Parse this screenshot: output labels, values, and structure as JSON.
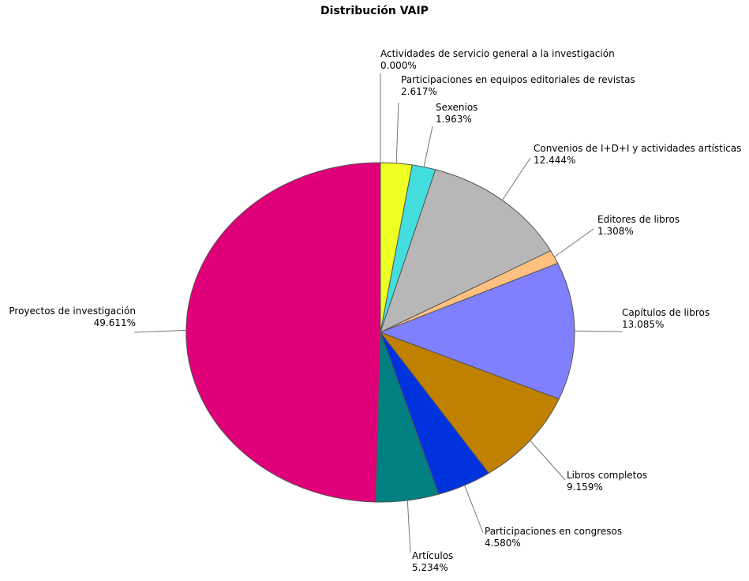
{
  "chart_data": {
    "type": "pie",
    "title": "Distribución VAIP",
    "slices": [
      {
        "label": "Actividades de servicio general a la investigación",
        "value_label": "0.000%",
        "value": 0.0,
        "color": "#FFFF00"
      },
      {
        "label": "Participaciones en equipos editoriales de revistas",
        "value_label": "2.617%",
        "value": 2.617,
        "color": "#EEFF22"
      },
      {
        "label": "Sexenios",
        "value_label": "1.963%",
        "value": 1.963,
        "color": "#44DDDD"
      },
      {
        "label": "Convenios de I+D+I y actividades artísticas",
        "value_label": "12.444%",
        "value": 12.444,
        "color": "#B7B7B7"
      },
      {
        "label": "Editores de libros",
        "value_label": "1.308%",
        "value": 1.308,
        "color": "#FFC080"
      },
      {
        "label": "Capítulos de libros",
        "value_label": "13.085%",
        "value": 13.085,
        "color": "#8080FF"
      },
      {
        "label": "Libros completos",
        "value_label": "9.159%",
        "value": 9.159,
        "color": "#C08000"
      },
      {
        "label": "Participaciones en congresos",
        "value_label": "4.580%",
        "value": 4.58,
        "color": "#0033DD"
      },
      {
        "label": "Artículos",
        "value_label": "5.234%",
        "value": 5.234,
        "color": "#008080"
      },
      {
        "label": "Proyectos de investigación",
        "value_label": "49.611%",
        "value": 49.611,
        "color": "#E0007A"
      }
    ]
  }
}
